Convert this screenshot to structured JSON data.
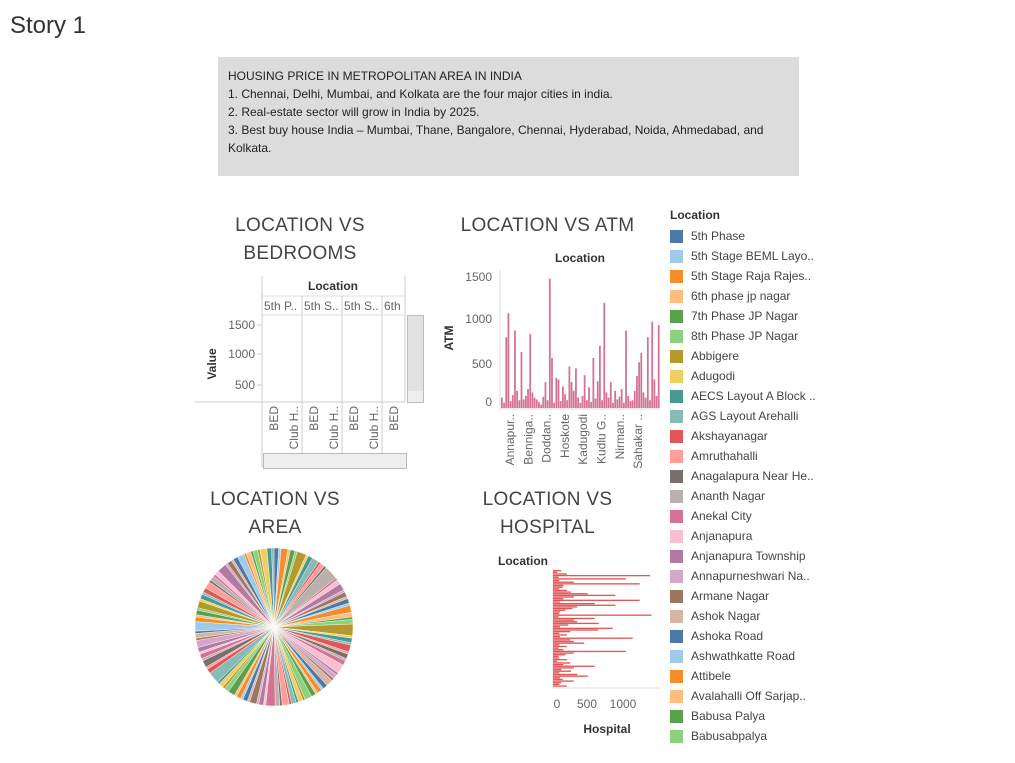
{
  "story": {
    "title": "Story 1"
  },
  "caption": {
    "heading": "HOUSING PRICE IN METROPOLITAN AREA IN INDIA",
    "lines": [
      "1.  Chennai, Delhi, Mumbai, and Kolkata are the four major cities in india.",
      "2.  Real-estate sector will grow in India by 2025.",
      "3.   Best buy house India – Mumbai, Thane, Bangalore, Chennai, Hyderabad, Noida, Ahmedabad, and Kolkata."
    ]
  },
  "legend": {
    "title": "Location",
    "items": [
      {
        "label": "5th Phase",
        "color": "#4e79a7"
      },
      {
        "label": "5th Stage BEML Layo..",
        "color": "#a0cbe8"
      },
      {
        "label": "5th Stage Raja Rajes..",
        "color": "#f28e2b"
      },
      {
        "label": "6th phase jp nagar",
        "color": "#ffbe7d"
      },
      {
        "label": "7th Phase JP Nagar",
        "color": "#59a14f"
      },
      {
        "label": "8th Phase JP Nagar",
        "color": "#8cd17d"
      },
      {
        "label": "Abbigere",
        "color": "#b6992d"
      },
      {
        "label": "Adugodi",
        "color": "#f1ce63"
      },
      {
        "label": "AECS Layout A Block ..",
        "color": "#499894"
      },
      {
        "label": "AGS Layout Arehalli",
        "color": "#86bcb6"
      },
      {
        "label": "Akshayanagar",
        "color": "#e15759"
      },
      {
        "label": "Amruthahalli",
        "color": "#ff9d9a"
      },
      {
        "label": "Anagalapura Near He..",
        "color": "#79706e"
      },
      {
        "label": "Ananth Nagar",
        "color": "#bab0ac"
      },
      {
        "label": "Anekal City",
        "color": "#d37295"
      },
      {
        "label": "Anjanapura",
        "color": "#fabfd2"
      },
      {
        "label": "Anjanapura Township",
        "color": "#b07aa1"
      },
      {
        "label": "Annapurneshwari Na..",
        "color": "#d4a6c8"
      },
      {
        "label": "Armane Nagar",
        "color": "#9d7660"
      },
      {
        "label": "Ashok Nagar",
        "color": "#d7b5a6"
      },
      {
        "label": "Ashoka Road",
        "color": "#4e79a7"
      },
      {
        "label": "Ashwathkatte Road",
        "color": "#a0cbe8"
      },
      {
        "label": "Attibele",
        "color": "#f28e2b"
      },
      {
        "label": "Avalahalli Off Sarjap..",
        "color": "#ffbe7d"
      },
      {
        "label": "Babusa Palya",
        "color": "#59a14f"
      },
      {
        "label": "Babusabpalya",
        "color": "#8cd17d"
      }
    ]
  },
  "charts": {
    "bedrooms": {
      "title_line1": "LOCATION VS",
      "title_line2": "BEDROOMS",
      "header": "Location",
      "columns": [
        "5th P..",
        "5th S..",
        "5th S..",
        "6th"
      ],
      "sub_labels": [
        "BED",
        "Club H..",
        "BED",
        "Club H..",
        "BED",
        "Club H..",
        "BED"
      ],
      "ylabel": "Value",
      "yticks": [
        "1500",
        "1000",
        "500"
      ]
    },
    "atm": {
      "title": "LOCATION VS ATM",
      "header": "Location",
      "ylabel": "ATM",
      "yticks": [
        "1500",
        "1000",
        "500",
        "0"
      ],
      "xlabels": [
        "Annapur..",
        "Benniga..",
        "Doddan..",
        "Hoskote",
        "Kadugodi",
        "Kudlu G..",
        "Nirman..",
        "Sahakar .."
      ]
    },
    "area": {
      "title_line1": "LOCATION VS",
      "title_line2": "AREA"
    },
    "hospital": {
      "title_line1": "LOCATION VS",
      "title_line2": "HOSPITAL",
      "ylabel": "Location",
      "xlabel": "Hospital",
      "xticks": [
        "0",
        "500",
        "1000"
      ]
    }
  },
  "chart_data": [
    {
      "type": "bar",
      "title": "LOCATION VS ATM",
      "xlabel": "Location",
      "ylabel": "ATM",
      "ylim": [
        0,
        1600
      ],
      "color": "#d37295",
      "values": [
        120,
        60,
        820,
        1100,
        80,
        150,
        900,
        200,
        90,
        650,
        100,
        140,
        220,
        860,
        180,
        120,
        100,
        70,
        40,
        130,
        300,
        90,
        1500,
        580,
        60,
        350,
        330,
        80,
        250,
        160,
        90,
        480,
        300,
        200,
        460,
        120,
        60,
        140,
        380,
        90,
        240,
        70,
        580,
        110,
        310,
        720,
        90,
        1220,
        180,
        120,
        300,
        60,
        200,
        100,
        130,
        220,
        60,
        900,
        140,
        80,
        90,
        200,
        370,
        530,
        640,
        180,
        120,
        820,
        90,
        1000,
        330,
        140,
        960
      ]
    },
    {
      "type": "pie",
      "title": "LOCATION VS AREA",
      "colors": [
        "#4e79a7",
        "#a0cbe8",
        "#f28e2b",
        "#ffbe7d",
        "#59a14f",
        "#8cd17d",
        "#b6992d",
        "#f1ce63",
        "#499894",
        "#86bcb6",
        "#e15759",
        "#ff9d9a",
        "#79706e",
        "#bab0ac",
        "#d37295",
        "#fabfd2",
        "#b07aa1",
        "#d4a6c8",
        "#9d7660",
        "#d7b5a6"
      ],
      "values": [
        2,
        1,
        3,
        1,
        2,
        1,
        4,
        1,
        2,
        3,
        1,
        2,
        1,
        6,
        1,
        2,
        3,
        1,
        2,
        1,
        2,
        1,
        3,
        2,
        1,
        2,
        5,
        1,
        2,
        1,
        3,
        1,
        2,
        1,
        2,
        4,
        1,
        2,
        1,
        3,
        2,
        1,
        2,
        1,
        2,
        3,
        1,
        2,
        1,
        2,
        1,
        3,
        1,
        2,
        4,
        1,
        2,
        1,
        3,
        1,
        2,
        1,
        2,
        1,
        3,
        2,
        1,
        2,
        1,
        5,
        2,
        1,
        3,
        1,
        2,
        1,
        2,
        3,
        1,
        2,
        1,
        4,
        2,
        1,
        2,
        1,
        3,
        1,
        2,
        1,
        2,
        3,
        1,
        2,
        1,
        2,
        4,
        1,
        2,
        1,
        2,
        3,
        1,
        2,
        1,
        2,
        1,
        3,
        2,
        1
      ]
    },
    {
      "type": "bar",
      "orientation": "horizontal",
      "title": "LOCATION VS HOSPITAL",
      "xlabel": "Hospital",
      "ylabel": "Location",
      "xlim": [
        0,
        1500
      ],
      "color": "#e15759",
      "values": [
        120,
        60,
        200,
        1400,
        80,
        1050,
        90,
        300,
        1250,
        150,
        140,
        90,
        200,
        260,
        500,
        900,
        300,
        150,
        1250,
        100,
        600,
        900,
        350,
        280,
        180,
        100,
        90,
        1420,
        80,
        600,
        300,
        350,
        660,
        220,
        100,
        860,
        650,
        250,
        90,
        200,
        100,
        1150,
        250,
        300,
        450,
        90,
        200,
        80,
        150,
        1050,
        300,
        180,
        80,
        90,
        200,
        60,
        250,
        150,
        600,
        300,
        120,
        260,
        90,
        350,
        500,
        100,
        140,
        300,
        120,
        90,
        200
      ]
    }
  ]
}
